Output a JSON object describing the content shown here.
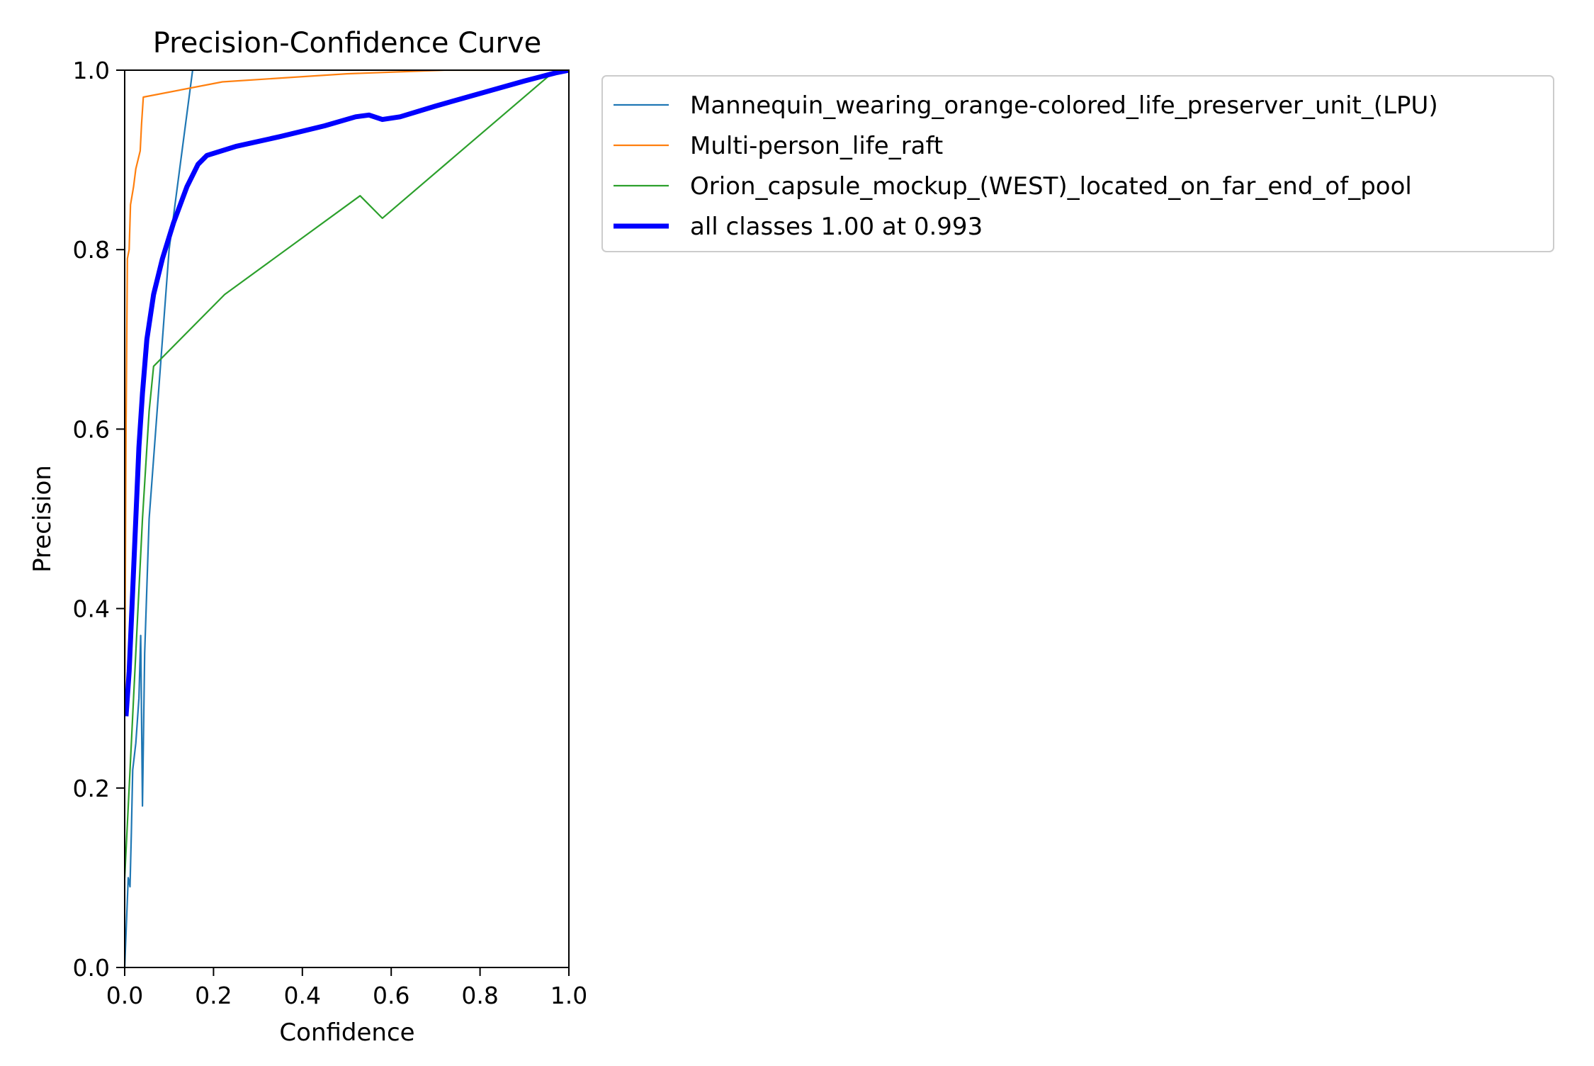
{
  "chart_data": {
    "type": "line",
    "title": "Precision-Confidence Curve",
    "xlabel": "Confidence",
    "ylabel": "Precision",
    "xlim": [
      0,
      1
    ],
    "ylim": [
      0,
      1
    ],
    "xticks": [
      "0.0",
      "0.2",
      "0.4",
      "0.6",
      "0.8",
      "1.0"
    ],
    "yticks": [
      "0.0",
      "0.2",
      "0.4",
      "0.6",
      "0.8",
      "1.0"
    ],
    "grid": false,
    "legend_position": "outside-upper-right",
    "series": [
      {
        "name": "Mannequin_wearing_orange-colored_life_preserver_unit_(LPU)",
        "color": "#1f77b4",
        "line_weight": "thin",
        "points": [
          [
            0.0,
            0.0
          ],
          [
            0.008,
            0.1
          ],
          [
            0.012,
            0.09
          ],
          [
            0.015,
            0.15
          ],
          [
            0.018,
            0.22
          ],
          [
            0.025,
            0.25
          ],
          [
            0.032,
            0.3
          ],
          [
            0.036,
            0.37
          ],
          [
            0.04,
            0.18
          ],
          [
            0.045,
            0.35
          ],
          [
            0.055,
            0.5
          ],
          [
            0.07,
            0.6
          ],
          [
            0.1,
            0.8
          ],
          [
            0.153,
            1.0
          ]
        ]
      },
      {
        "name": "Multi-person_life_raft",
        "color": "#ff7f0e",
        "line_weight": "thin",
        "points": [
          [
            0.0,
            0.28
          ],
          [
            0.003,
            0.6
          ],
          [
            0.006,
            0.79
          ],
          [
            0.01,
            0.8
          ],
          [
            0.013,
            0.85
          ],
          [
            0.02,
            0.87
          ],
          [
            0.025,
            0.89
          ],
          [
            0.035,
            0.91
          ],
          [
            0.038,
            0.94
          ],
          [
            0.042,
            0.97
          ],
          [
            0.22,
            0.987
          ],
          [
            0.5,
            0.996
          ],
          [
            0.72,
            1.0
          ],
          [
            1.0,
            1.0
          ]
        ]
      },
      {
        "name": "Orion_capsule_mockup_(WEST)_located_on_far_end_of_pool",
        "color": "#2ca02c",
        "line_weight": "thin",
        "points": [
          [
            0.0,
            0.1
          ],
          [
            0.01,
            0.2
          ],
          [
            0.02,
            0.3
          ],
          [
            0.03,
            0.4
          ],
          [
            0.04,
            0.5
          ],
          [
            0.055,
            0.62
          ],
          [
            0.065,
            0.67
          ],
          [
            0.225,
            0.75
          ],
          [
            0.53,
            0.86
          ],
          [
            0.58,
            0.835
          ],
          [
            0.97,
            1.0
          ],
          [
            1.0,
            1.0
          ]
        ]
      },
      {
        "name": "all classes 1.00 at 0.993",
        "color": "#0000ff",
        "line_weight": "thick",
        "points": [
          [
            0.003,
            0.28
          ],
          [
            0.01,
            0.33
          ],
          [
            0.018,
            0.42
          ],
          [
            0.025,
            0.5
          ],
          [
            0.032,
            0.58
          ],
          [
            0.04,
            0.64
          ],
          [
            0.05,
            0.7
          ],
          [
            0.065,
            0.75
          ],
          [
            0.085,
            0.79
          ],
          [
            0.11,
            0.83
          ],
          [
            0.14,
            0.87
          ],
          [
            0.165,
            0.895
          ],
          [
            0.185,
            0.905
          ],
          [
            0.25,
            0.915
          ],
          [
            0.35,
            0.926
          ],
          [
            0.45,
            0.938
          ],
          [
            0.52,
            0.948
          ],
          [
            0.55,
            0.95
          ],
          [
            0.58,
            0.945
          ],
          [
            0.62,
            0.948
          ],
          [
            0.7,
            0.96
          ],
          [
            0.8,
            0.974
          ],
          [
            0.9,
            0.988
          ],
          [
            0.97,
            0.997
          ],
          [
            1.0,
            1.0
          ]
        ]
      }
    ]
  }
}
